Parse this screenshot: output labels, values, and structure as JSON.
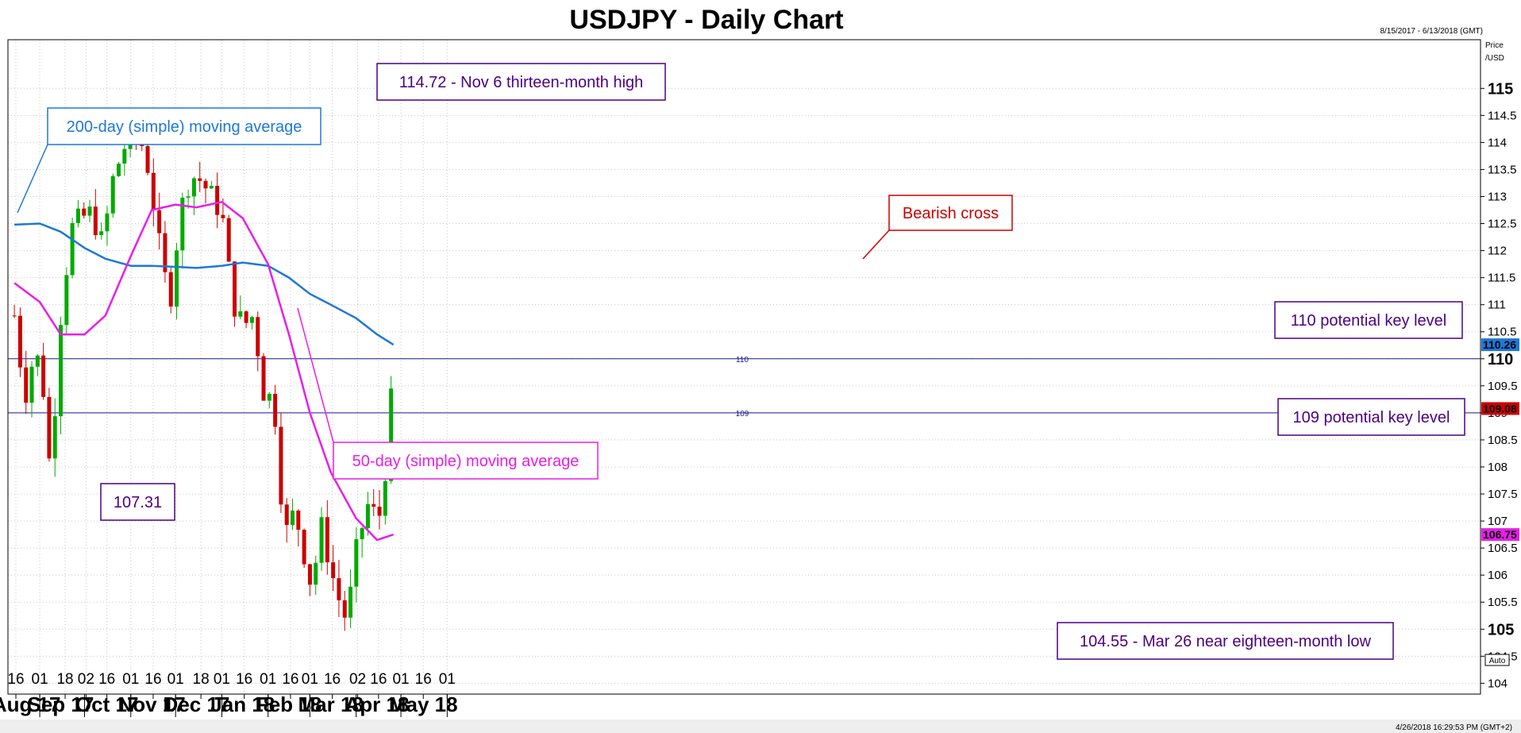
{
  "chart_data": {
    "type": "candlestick",
    "title": "USDJPY - Daily Chart",
    "date_range": "8/15/2017 - 6/13/2018 (GMT)",
    "price_axis_label": [
      "Price",
      "/USD"
    ],
    "footer_timestamp": "4/26/2018 16:29:53 PM (GMT+2)",
    "auto_label": "Auto",
    "ylim": [
      103.8,
      115.9
    ],
    "y_ticks": [
      "104",
      "104.5",
      "105",
      "105.5",
      "106",
      "106.5",
      "107",
      "107.5",
      "108",
      "108.5",
      "109",
      "109.5",
      "110",
      "110.5",
      "111",
      "111.5",
      "112",
      "112.5",
      "113",
      "113.5",
      "114",
      "114.5",
      "115"
    ],
    "y_major_ticks": [
      "105",
      "110",
      "115"
    ],
    "x_day_ticks": [
      "16",
      "01",
      "18",
      "02",
      "16",
      "01",
      "16",
      "01",
      "18",
      "01",
      "16",
      "01",
      "16",
      "01",
      "16",
      "02",
      "16",
      "01",
      "16",
      "01"
    ],
    "x_month_labels": [
      "Aug 17",
      "Sep 17",
      "Oct 17",
      "Nov 17",
      "Dec 17",
      "Jan 18",
      "Feb 18",
      "Mar 18",
      "Apr 18",
      "May 18"
    ],
    "colors": {
      "up": "#00aa00",
      "down": "#cc0000",
      "ma200": "#1e78d7",
      "ma50": "#e81ee8",
      "level": "#1a1a8c",
      "annotation_border": "#4b0082"
    },
    "levels": [
      {
        "value": 110,
        "label": "110"
      },
      {
        "value": 109,
        "label": "109"
      }
    ],
    "last_values": [
      {
        "name": "ma200",
        "value": "110.26"
      },
      {
        "name": "close",
        "value": "109.08"
      },
      {
        "name": "ma50",
        "value": "106.75"
      }
    ],
    "series": [
      {
        "name": "200-day (simple) moving average",
        "dates": [
          "2017-08-15",
          "2017-09-01",
          "2017-09-15",
          "2017-10-01",
          "2017-10-15",
          "2017-11-01",
          "2017-11-15",
          "2017-12-01",
          "2017-12-15",
          "2018-01-01",
          "2018-01-15",
          "2018-02-01",
          "2018-02-15",
          "2018-03-01",
          "2018-03-15",
          "2018-04-01",
          "2018-04-15",
          "2018-04-26"
        ],
        "values": [
          112.48,
          112.5,
          112.35,
          112.05,
          111.85,
          111.72,
          111.72,
          111.7,
          111.68,
          111.72,
          111.78,
          111.72,
          111.5,
          111.2,
          111.0,
          110.75,
          110.45,
          110.26
        ]
      },
      {
        "name": "50-day (simple) moving average",
        "dates": [
          "2017-08-15",
          "2017-09-01",
          "2017-09-15",
          "2017-10-01",
          "2017-10-15",
          "2017-11-01",
          "2017-11-15",
          "2017-12-01",
          "2017-12-15",
          "2018-01-01",
          "2018-01-15",
          "2018-02-01",
          "2018-02-15",
          "2018-03-01",
          "2018-03-15",
          "2018-04-01",
          "2018-04-15",
          "2018-04-26"
        ],
        "values": [
          111.4,
          111.05,
          110.45,
          110.45,
          110.8,
          111.9,
          112.75,
          112.85,
          112.8,
          112.9,
          112.6,
          111.75,
          110.45,
          109.0,
          107.9,
          107.05,
          106.65,
          106.75
        ]
      },
      {
        "name": "USDJPY daily close",
        "dates": [
          "2017-08-15",
          "2017-08-22",
          "2017-08-29",
          "2017-09-05",
          "2017-09-08",
          "2017-09-15",
          "2017-09-22",
          "2017-09-29",
          "2017-10-06",
          "2017-10-13",
          "2017-10-20",
          "2017-10-27",
          "2017-11-06",
          "2017-11-13",
          "2017-11-20",
          "2017-11-27",
          "2017-12-04",
          "2017-12-11",
          "2017-12-18",
          "2017-12-25",
          "2018-01-01",
          "2018-01-08",
          "2018-01-15",
          "2018-01-22",
          "2018-01-29",
          "2018-02-05",
          "2018-02-12",
          "2018-02-19",
          "2018-02-26",
          "2018-03-02",
          "2018-03-09",
          "2018-03-16",
          "2018-03-23",
          "2018-03-26",
          "2018-04-02",
          "2018-04-09",
          "2018-04-16",
          "2018-04-20",
          "2018-04-25",
          "2018-04-26"
        ],
        "values": [
          110.8,
          109.3,
          110.2,
          109.2,
          107.8,
          110.8,
          112.4,
          112.6,
          112.7,
          112.1,
          113.3,
          113.9,
          114.2,
          113.5,
          112.1,
          111.0,
          112.7,
          113.4,
          113.3,
          113.0,
          112.7,
          111.1,
          110.6,
          110.8,
          109.4,
          109.2,
          106.7,
          107.2,
          106.3,
          105.8,
          106.9,
          106.0,
          105.3,
          105.2,
          106.6,
          107.3,
          107.0,
          107.8,
          109.4,
          109.08
        ]
      }
    ],
    "annotations": [
      {
        "text": "114.72 - Nov 6 thirteen-month high",
        "color": "#4b0082",
        "value": 114.72,
        "date": "2017-11-06"
      },
      {
        "text": "200-day (simple) moving average",
        "color": "#1e78d7"
      },
      {
        "text": "Bearish cross",
        "color": "#cc0000"
      },
      {
        "text": "110 potential key level",
        "color": "#4b0082"
      },
      {
        "text": "109 potential key level",
        "color": "#4b0082"
      },
      {
        "text": "50-day (simple) moving average",
        "color": "#e81ee8"
      },
      {
        "text": "107.31",
        "color": "#4b0082",
        "value": 107.31,
        "date": "2017-09-08"
      },
      {
        "text": "104.55 - Mar 26 near eighteen-month low",
        "color": "#4b0082",
        "value": 104.55,
        "date": "2018-03-26"
      }
    ],
    "grid": true
  }
}
